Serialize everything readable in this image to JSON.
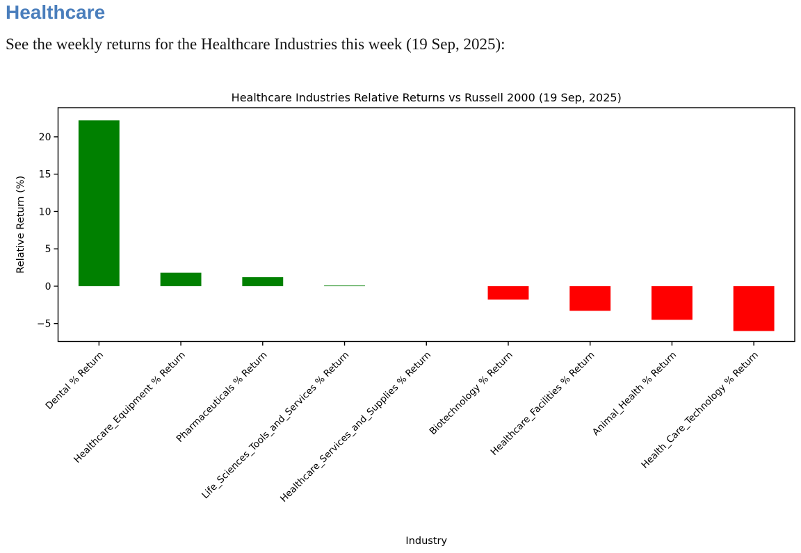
{
  "page": {
    "title": "Healthcare",
    "intro": "See the weekly returns for the Healthcare Industries this week (19 Sep, 2025):"
  },
  "colors": {
    "heading": "#4a7ebc",
    "positive_bar": "#008000",
    "negative_bar": "#ff0000",
    "axis": "#000000",
    "background": "#ffffff"
  },
  "chart_data": {
    "type": "bar",
    "title": "Healthcare Industries Relative Returns vs Russell 2000 (19 Sep, 2025)",
    "xlabel": "Industry",
    "ylabel": "Relative Return (%)",
    "categories": [
      "Dental % Return",
      "Healthcare_Equipment % Return",
      "Pharmaceuticals % Return",
      "Life_Sciences_Tools_and_Services % Return",
      "Healthcare_Services_and_Supplies % Return",
      "Biotechnology % Return",
      "Healthcare_Facilities % Return",
      "Animal_Health % Return",
      "Health_Care_Technology % Return"
    ],
    "values": [
      22.2,
      1.8,
      1.2,
      0.1,
      0.0,
      -1.8,
      -3.3,
      -4.5,
      -6.0
    ],
    "ylim": [
      -7.4,
      23.9
    ],
    "yticks": [
      -5,
      0,
      5,
      10,
      15,
      20
    ],
    "x_tick_rotation": 45,
    "grid": false,
    "legend": "none",
    "bar_color_rule": "green if value >= 0 else red"
  }
}
